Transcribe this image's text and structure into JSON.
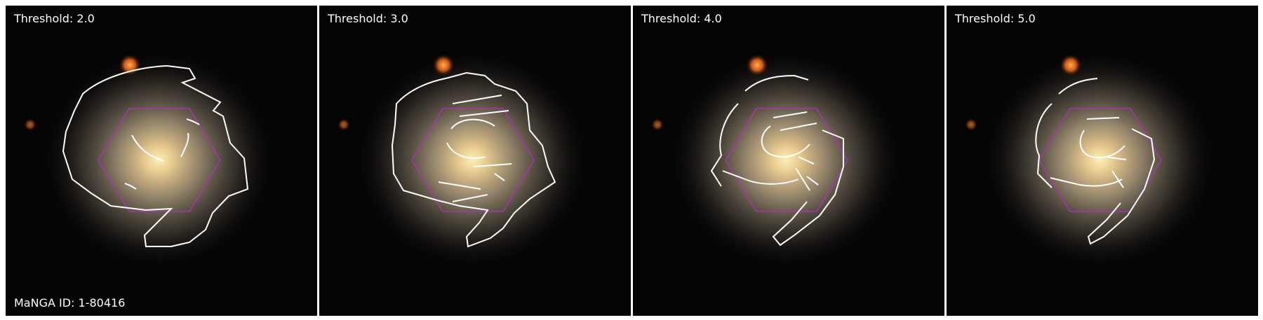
{
  "figure": {
    "panels": [
      {
        "threshold_label": "Threshold: 2.0",
        "threshold": 2.0
      },
      {
        "threshold_label": "Threshold: 3.0",
        "threshold": 3.0
      },
      {
        "threshold_label": "Threshold: 4.0",
        "threshold": 4.0
      },
      {
        "threshold_label": "Threshold: 5.0",
        "threshold": 5.0
      }
    ],
    "manga_id_label": "MaNGA ID: 1-80416"
  },
  "colors": {
    "background": "#050404",
    "contour": "#ffffff",
    "ifu_hexagon": "#b030c0",
    "galaxy_core": "#ffe9a8",
    "galaxy_halo": "#8f7f68",
    "star": "#ff7a2a"
  }
}
